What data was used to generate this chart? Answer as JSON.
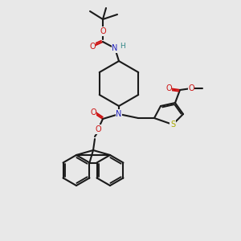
{
  "bg_color": "#e8e8e8",
  "bond_color": "#1a1a1a",
  "N_color": "#2222bb",
  "O_color": "#cc1111",
  "S_color": "#aaaa00",
  "H_color": "#338888",
  "lw": 1.5,
  "figsize": [
    3.0,
    3.0
  ],
  "dpi": 100,
  "xlim": [
    0,
    300
  ],
  "ylim": [
    0,
    300
  ]
}
